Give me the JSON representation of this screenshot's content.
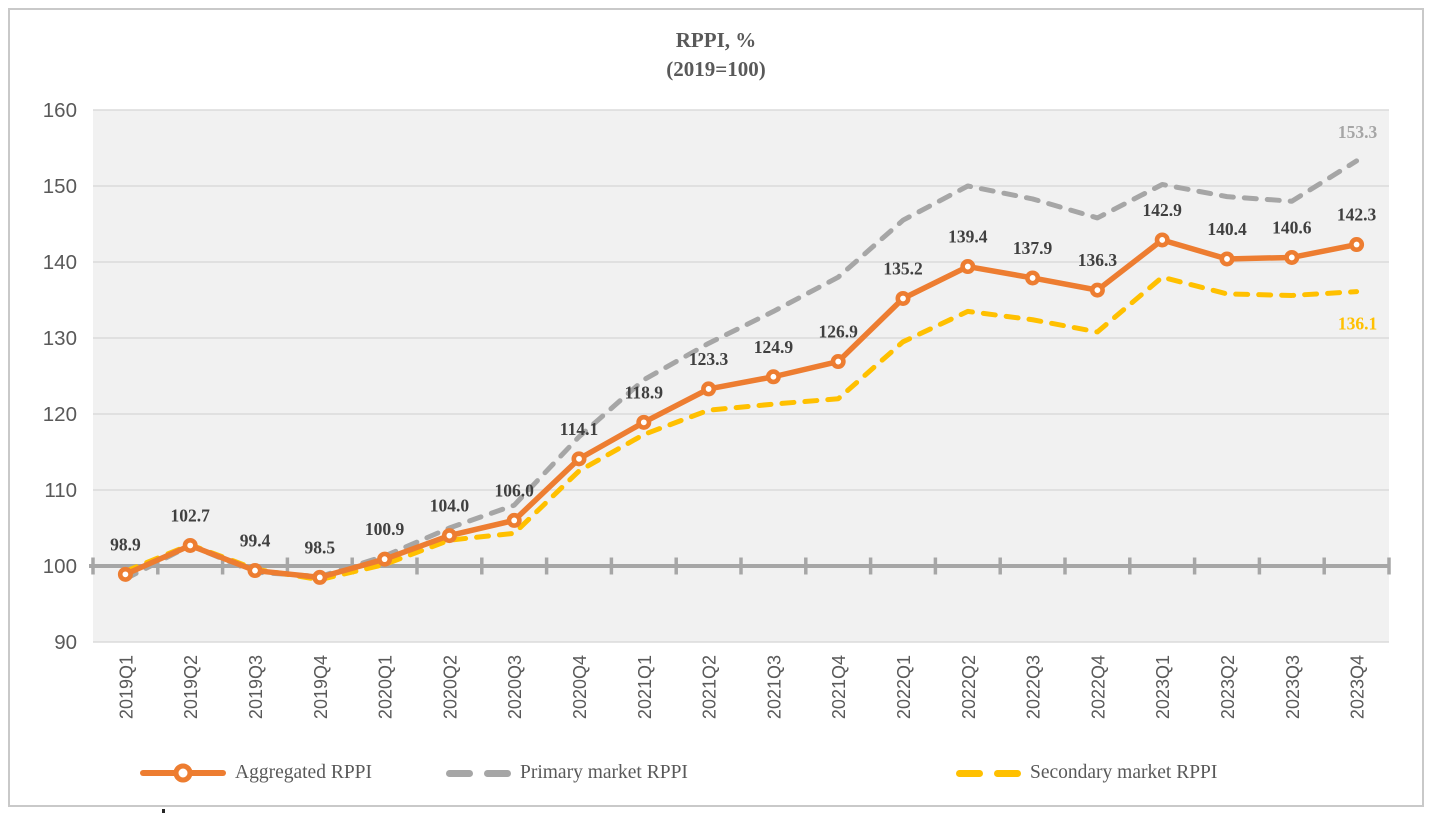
{
  "title": {
    "line1": "RPPI, %",
    "line2": "(2019=100)"
  },
  "legend": {
    "aggregated_label": "Aggregated RPPI",
    "primary_label": "Primary market RPPI",
    "secondary_label": "Secondary market RPPI"
  },
  "colors": {
    "aggregated": "#ED7D31",
    "primary": "#A6A6A6",
    "secondary": "#FFC000",
    "value_label_text": "#404040",
    "axis_text": "#595959",
    "plot_bg": "#F1F1F1",
    "gridline": "#DBDBDB",
    "baseline": "#A6A6A6"
  },
  "chart_data": {
    "type": "line",
    "title": "RPPI, % (2019=100)",
    "categories": [
      "2019Q1",
      "2019Q2",
      "2019Q3",
      "2019Q4",
      "2020Q1",
      "2020Q2",
      "2020Q3",
      "2020Q4",
      "2021Q1",
      "2021Q2",
      "2021Q3",
      "2021Q4",
      "2022Q1",
      "2022Q2",
      "2022Q3",
      "2022Q4",
      "2023Q1",
      "2023Q2",
      "2023Q3",
      "2023Q4"
    ],
    "series": [
      {
        "name": "Aggregated RPPI",
        "style": "solid-with-circle-markers",
        "color": "#ED7D31",
        "labels_shown": "all",
        "values": [
          98.9,
          102.7,
          99.4,
          98.5,
          100.9,
          104.0,
          106.0,
          114.1,
          118.9,
          123.3,
          124.9,
          126.9,
          135.2,
          139.4,
          137.9,
          136.3,
          142.9,
          140.4,
          140.6,
          142.3
        ]
      },
      {
        "name": "Primary market RPPI",
        "style": "dashed",
        "color": "#A6A6A6",
        "labels_shown": "last-only",
        "last_label": "153.3",
        "values": [
          98.3,
          102.7,
          99.2,
          98.6,
          101.3,
          105.0,
          108.0,
          117.0,
          124.5,
          129.3,
          133.5,
          138.0,
          145.5,
          150.0,
          148.3,
          145.8,
          150.2,
          148.6,
          148.0,
          153.3
        ]
      },
      {
        "name": "Secondary market RPPI",
        "style": "dashed",
        "color": "#FFC000",
        "labels_shown": "last-only",
        "last_label": "136.1",
        "values": [
          99.3,
          102.8,
          99.6,
          98.2,
          100.2,
          103.4,
          104.3,
          112.5,
          117.3,
          120.5,
          121.3,
          122.0,
          129.5,
          133.5,
          132.4,
          130.8,
          138.0,
          135.8,
          135.6,
          136.1
        ]
      }
    ],
    "ylim": [
      90,
      160
    ],
    "y_ticks": [
      90,
      100,
      110,
      120,
      130,
      140,
      150,
      160
    ],
    "baseline_value": 100,
    "grid": true,
    "legend_position": "bottom"
  }
}
